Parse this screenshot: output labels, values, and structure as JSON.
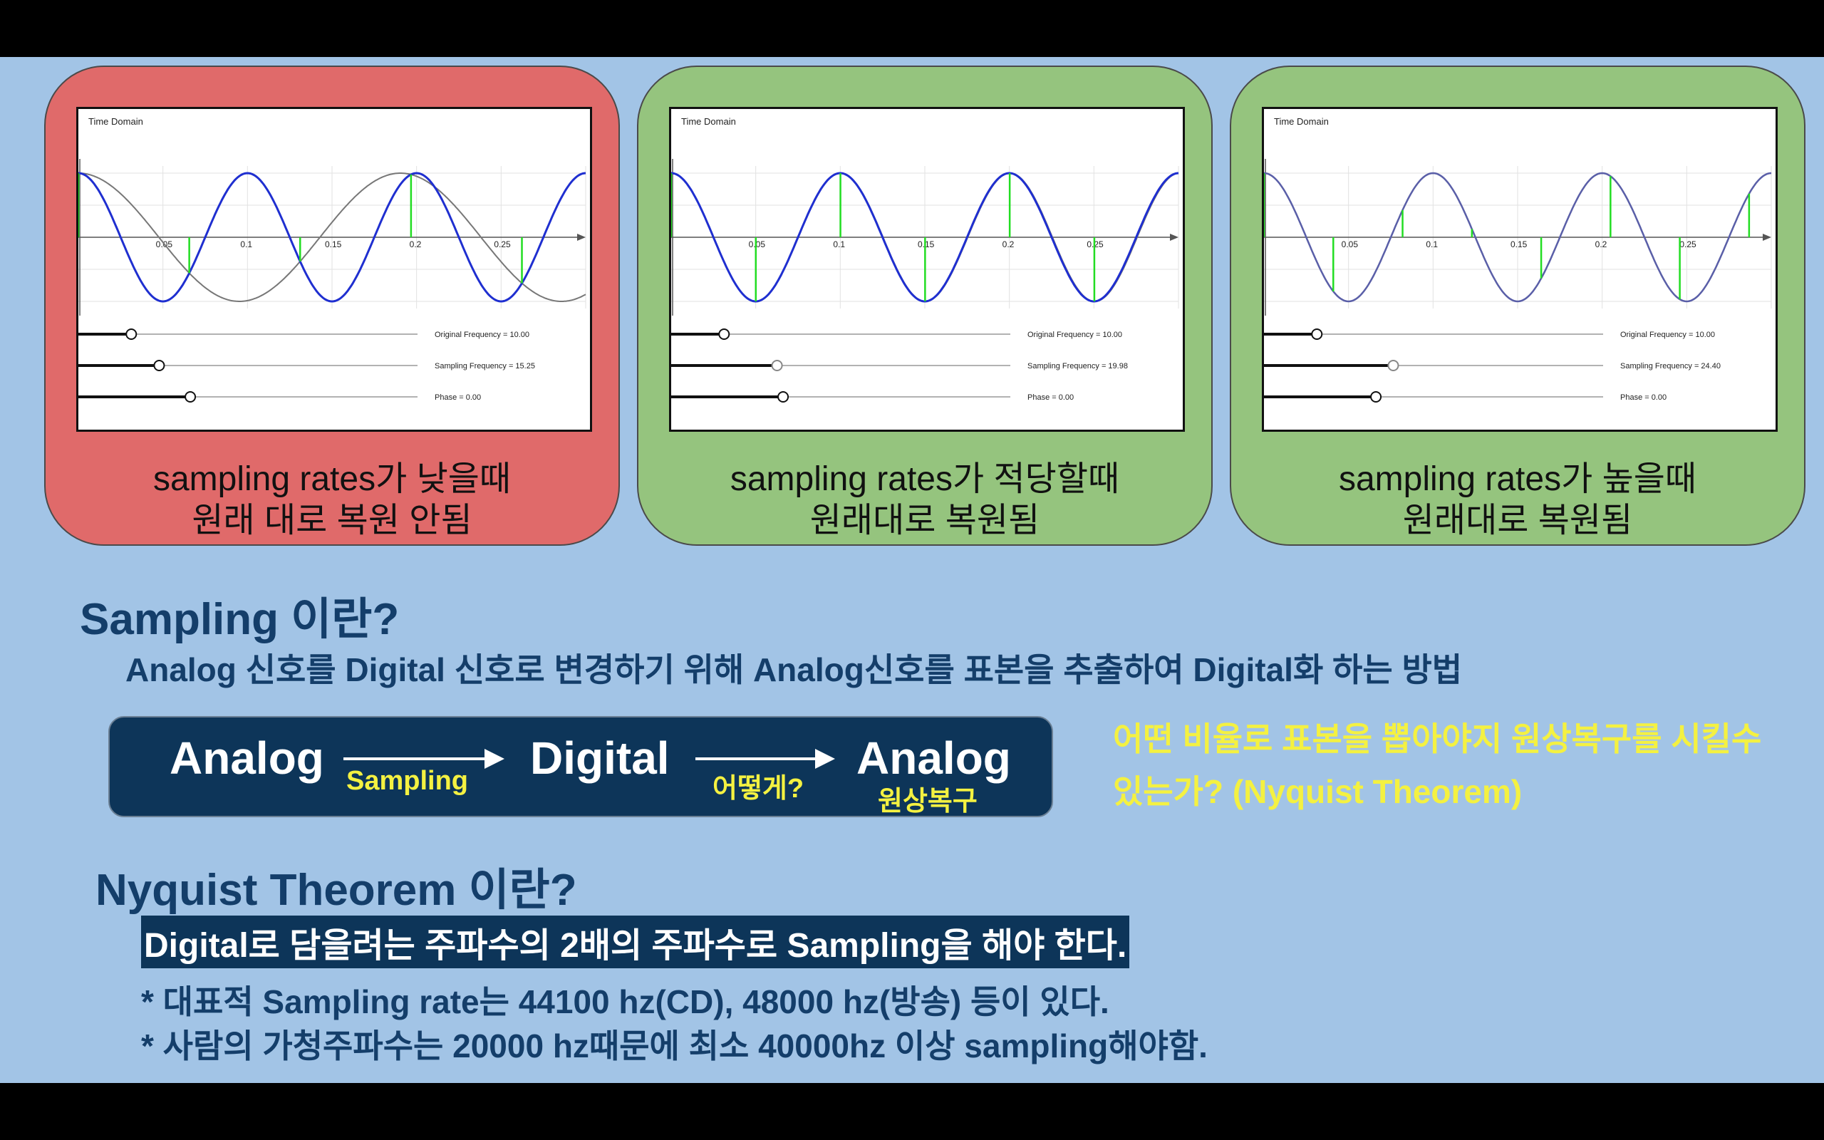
{
  "panels": [
    {
      "status": "bad",
      "plot_title": "Time Domain",
      "ticks": [
        "0.05",
        "0.1",
        "0.15",
        "0.2",
        "0.25"
      ],
      "original_frequency": 10.0,
      "sampling_frequency": 15.25,
      "phase": 0.0,
      "slider_labels": [
        "Original Frequency = 10.00",
        "Sampling Frequency = 15.25",
        "Phase = 0.00"
      ],
      "caption_line1": "sampling rates가 낮을때",
      "caption_line2": "원래 대로 복원 안됨"
    },
    {
      "status": "good",
      "plot_title": "Time Domain",
      "ticks": [
        "0.05",
        "0.1",
        "0.15",
        "0.2",
        "0.25"
      ],
      "original_frequency": 10.0,
      "sampling_frequency": 19.98,
      "phase": 0.0,
      "slider_labels": [
        "Original Frequency = 10.00",
        "Sampling Frequency = 19.98",
        "Phase = 0.00"
      ],
      "caption_line1": "sampling rates가 적당할때",
      "caption_line2": "원래대로 복원됨"
    },
    {
      "status": "good",
      "plot_title": "Time Domain",
      "ticks": [
        "0.05",
        "0.1",
        "0.15",
        "0.2",
        "0.25"
      ],
      "original_frequency": 10.0,
      "sampling_frequency": 24.4,
      "phase": 0.0,
      "slider_labels": [
        "Original Frequency = 10.00",
        "Sampling Frequency = 24.40",
        "Phase = 0.00"
      ],
      "caption_line1": "sampling rates가 높을때",
      "caption_line2": "원래대로 복원됨"
    }
  ],
  "sampling": {
    "heading": "Sampling 이란?",
    "definition": "Analog 신호를 Digital 신호로 변경하기 위해 Analog신호를 표본을 추출하여 Digital화 하는 방법"
  },
  "flow": {
    "analog1": "Analog",
    "sampling_label": "Sampling",
    "digital": "Digital",
    "how_label": "어떻게?",
    "analog2": "Analog",
    "restore_label": "원상복구"
  },
  "question": "어떤 비율로 표본을 뽑아야지 원상복구를 시킬수 있는가? (Nyquist Theorem)",
  "nyquist": {
    "heading": "Nyquist Theorem 이란?",
    "statement": "Digital로 담을려는 주파수의 2배의 주파수로 Sampling을 해야 한다.",
    "note1": "* 대표적 Sampling rate는 44100 hz(CD), 48000 hz(방송) 등이 있다.",
    "note2": "* 사람의 가청주파수는 20000 hz때문에 최소 40000hz 이상 sampling해야함."
  },
  "colors": {
    "background": "#a2c4e6",
    "bad_panel": "#e06a6a",
    "good_panel": "#95c47e",
    "navy": "#0d3559",
    "heading_text": "#143e6a",
    "highlight_yellow": "#f4f141",
    "original_wave": "#1f2fd0",
    "reconstructed_wave": "#777777",
    "sample_line": "#22dd22"
  }
}
